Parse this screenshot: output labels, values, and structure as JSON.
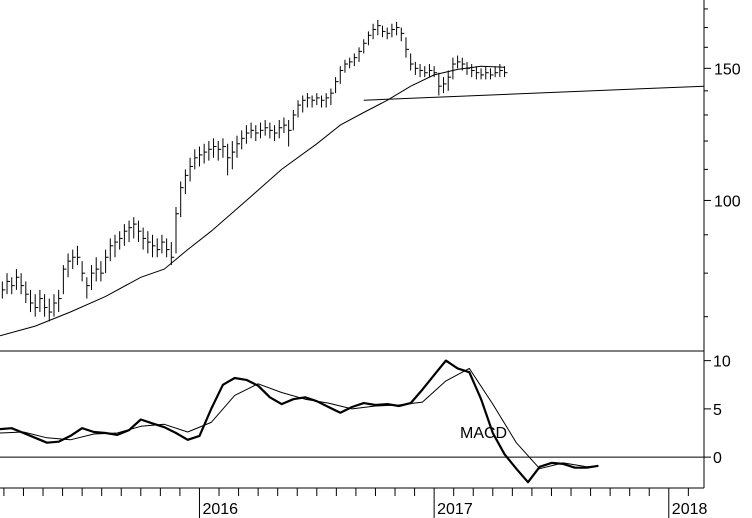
{
  "chart_data": [
    {
      "type": "line",
      "panel": "price",
      "scale": "log",
      "price_ticks": [
        100,
        150
      ],
      "price_tick_labels": [
        "100",
        "150"
      ],
      "xlim": [
        2015.15,
        2018.15
      ],
      "ylim": [
        63,
        185
      ],
      "year_ticks": [
        2016,
        2017,
        2018
      ],
      "year_labels": [
        "2016",
        "2017",
        "2018"
      ],
      "ohlc": [
        [
          2015.16,
          78,
          74,
          76
        ],
        [
          2015.18,
          80,
          75,
          78
        ],
        [
          2015.2,
          79,
          75,
          77
        ],
        [
          2015.22,
          81,
          76,
          79
        ],
        [
          2015.24,
          80,
          75,
          77
        ],
        [
          2015.26,
          78,
          73,
          75
        ],
        [
          2015.28,
          76,
          71,
          73
        ],
        [
          2015.3,
          75,
          70,
          72
        ],
        [
          2015.32,
          76,
          71,
          74
        ],
        [
          2015.34,
          75,
          70,
          72
        ],
        [
          2015.36,
          74,
          69,
          71
        ],
        [
          2015.38,
          75,
          70,
          73
        ],
        [
          2015.4,
          76,
          71,
          74
        ],
        [
          2015.42,
          82,
          75,
          81
        ],
        [
          2015.44,
          85,
          79,
          83
        ],
        [
          2015.46,
          86,
          81,
          84
        ],
        [
          2015.48,
          87,
          82,
          84
        ],
        [
          2015.5,
          83,
          78,
          80
        ],
        [
          2015.52,
          79,
          74,
          77
        ],
        [
          2015.54,
          82,
          76,
          80
        ],
        [
          2015.56,
          84,
          78,
          81
        ],
        [
          2015.58,
          83,
          78,
          80
        ],
        [
          2015.6,
          86,
          80,
          84
        ],
        [
          2015.62,
          89,
          83,
          87
        ],
        [
          2015.64,
          90,
          84,
          88
        ],
        [
          2015.66,
          91,
          86,
          89
        ],
        [
          2015.68,
          93,
          87,
          91
        ],
        [
          2015.7,
          94,
          88,
          92
        ],
        [
          2015.72,
          95,
          89,
          93
        ],
        [
          2015.74,
          94,
          88,
          91
        ],
        [
          2015.76,
          92,
          86,
          89
        ],
        [
          2015.78,
          91,
          85,
          88
        ],
        [
          2015.8,
          90,
          84,
          87
        ],
        [
          2015.82,
          89,
          84,
          86
        ],
        [
          2015.84,
          90,
          85,
          88
        ],
        [
          2015.86,
          89,
          84,
          86
        ],
        [
          2015.88,
          88,
          82,
          84
        ],
        [
          2015.9,
          98,
          85,
          96
        ],
        [
          2015.92,
          106,
          95,
          104
        ],
        [
          2015.94,
          110,
          102,
          108
        ],
        [
          2015.96,
          114,
          106,
          111
        ],
        [
          2015.98,
          117,
          110,
          114
        ],
        [
          2016.0,
          118,
          111,
          115
        ],
        [
          2016.02,
          119,
          112,
          116
        ],
        [
          2016.04,
          120,
          113,
          117
        ],
        [
          2016.06,
          121,
          114,
          118
        ],
        [
          2016.08,
          120,
          113,
          117
        ],
        [
          2016.1,
          121,
          114,
          118
        ],
        [
          2016.12,
          119,
          108,
          114
        ],
        [
          2016.14,
          120,
          110,
          116
        ],
        [
          2016.16,
          122,
          114,
          119
        ],
        [
          2016.18,
          124,
          117,
          121
        ],
        [
          2016.2,
          126,
          119,
          123
        ],
        [
          2016.22,
          127,
          121,
          124
        ],
        [
          2016.24,
          126,
          120,
          123
        ],
        [
          2016.26,
          127,
          121,
          124
        ],
        [
          2016.28,
          128,
          122,
          125
        ],
        [
          2016.3,
          127,
          121,
          124
        ],
        [
          2016.32,
          126,
          120,
          123
        ],
        [
          2016.34,
          128,
          121,
          125
        ],
        [
          2016.36,
          129,
          123,
          126
        ],
        [
          2016.38,
          128,
          118,
          124
        ],
        [
          2016.4,
          132,
          124,
          130
        ],
        [
          2016.42,
          136,
          129,
          134
        ],
        [
          2016.44,
          138,
          131,
          136
        ],
        [
          2016.46,
          139,
          133,
          137
        ],
        [
          2016.48,
          138,
          133,
          136
        ],
        [
          2016.5,
          139,
          134,
          137
        ],
        [
          2016.52,
          138,
          133,
          136
        ],
        [
          2016.54,
          139,
          133,
          137
        ],
        [
          2016.56,
          141,
          134,
          139
        ],
        [
          2016.58,
          146,
          139,
          144
        ],
        [
          2016.6,
          151,
          143,
          149
        ],
        [
          2016.62,
          154,
          148,
          152
        ],
        [
          2016.64,
          155,
          150,
          153
        ],
        [
          2016.66,
          157,
          151,
          155
        ],
        [
          2016.68,
          160,
          153,
          158
        ],
        [
          2016.7,
          164,
          157,
          162
        ],
        [
          2016.72,
          168,
          161,
          166
        ],
        [
          2016.74,
          172,
          164,
          169
        ],
        [
          2016.76,
          174,
          166,
          171
        ],
        [
          2016.78,
          171,
          165,
          168
        ],
        [
          2016.8,
          170,
          164,
          167
        ],
        [
          2016.82,
          172,
          165,
          169
        ],
        [
          2016.84,
          173,
          166,
          170
        ],
        [
          2016.86,
          170,
          163,
          167
        ],
        [
          2016.88,
          165,
          155,
          159
        ],
        [
          2016.9,
          157,
          149,
          152
        ],
        [
          2016.92,
          153,
          147,
          150
        ],
        [
          2016.94,
          152,
          146,
          149
        ],
        [
          2016.96,
          151,
          146,
          148
        ],
        [
          2016.98,
          152,
          146,
          149
        ],
        [
          2017.0,
          151,
          146,
          148
        ],
        [
          2017.02,
          148,
          138,
          142
        ],
        [
          2017.04,
          146,
          139,
          143
        ],
        [
          2017.06,
          149,
          140,
          146
        ],
        [
          2017.08,
          155,
          145,
          152
        ],
        [
          2017.1,
          156,
          150,
          153
        ],
        [
          2017.12,
          155,
          149,
          152
        ],
        [
          2017.14,
          153,
          147,
          150
        ],
        [
          2017.16,
          152,
          146,
          149
        ],
        [
          2017.18,
          151,
          145,
          148
        ],
        [
          2017.2,
          150,
          145,
          147
        ],
        [
          2017.22,
          151,
          145,
          148
        ],
        [
          2017.24,
          150,
          145,
          147
        ],
        [
          2017.26,
          151,
          146,
          148
        ],
        [
          2017.28,
          152,
          146,
          149
        ],
        [
          2017.3,
          151,
          146,
          148
        ]
      ],
      "trendline": [
        [
          2016.7,
          136.0
        ],
        [
          2018.15,
          142.0
        ]
      ],
      "moving_average": [
        [
          2015.15,
          66.0
        ],
        [
          2015.3,
          68.0
        ],
        [
          2015.45,
          71.0
        ],
        [
          2015.6,
          74.5
        ],
        [
          2015.75,
          79.0
        ],
        [
          2015.85,
          81.0
        ],
        [
          2015.95,
          86.0
        ],
        [
          2016.05,
          91.0
        ],
        [
          2016.2,
          100.0
        ],
        [
          2016.35,
          110.0
        ],
        [
          2016.5,
          119.0
        ],
        [
          2016.6,
          126.0
        ],
        [
          2016.7,
          131.0
        ],
        [
          2016.8,
          136.0
        ],
        [
          2016.9,
          142.0
        ],
        [
          2017.0,
          147.0
        ],
        [
          2017.1,
          149.5
        ],
        [
          2017.2,
          151.0
        ],
        [
          2017.3,
          150.5
        ]
      ]
    },
    {
      "type": "line",
      "panel": "macd",
      "label": "MACD",
      "ylim": [
        -3.2,
        11
      ],
      "y_ticks": [
        0,
        5,
        10
      ],
      "y_tick_labels": [
        "0",
        "5",
        "10"
      ],
      "series": [
        {
          "role": "macd",
          "points": [
            [
              2015.15,
              2.9
            ],
            [
              2015.2,
              3.0
            ],
            [
              2015.25,
              2.5
            ],
            [
              2015.3,
              2.0
            ],
            [
              2015.35,
              1.5
            ],
            [
              2015.4,
              1.6
            ],
            [
              2015.45,
              2.2
            ],
            [
              2015.5,
              3.0
            ],
            [
              2015.55,
              2.6
            ],
            [
              2015.6,
              2.5
            ],
            [
              2015.65,
              2.3
            ],
            [
              2015.7,
              2.8
            ],
            [
              2015.75,
              3.9
            ],
            [
              2015.8,
              3.5
            ],
            [
              2015.85,
              3.1
            ],
            [
              2015.9,
              2.5
            ],
            [
              2015.95,
              1.8
            ],
            [
              2016.0,
              2.2
            ],
            [
              2016.05,
              5.0
            ],
            [
              2016.1,
              7.5
            ],
            [
              2016.15,
              8.2
            ],
            [
              2016.2,
              8.0
            ],
            [
              2016.25,
              7.4
            ],
            [
              2016.3,
              6.2
            ],
            [
              2016.35,
              5.5
            ],
            [
              2016.4,
              6.0
            ],
            [
              2016.45,
              6.2
            ],
            [
              2016.5,
              5.8
            ],
            [
              2016.55,
              5.2
            ],
            [
              2016.6,
              4.6
            ],
            [
              2016.65,
              5.2
            ],
            [
              2016.7,
              5.6
            ],
            [
              2016.75,
              5.4
            ],
            [
              2016.8,
              5.5
            ],
            [
              2016.85,
              5.3
            ],
            [
              2016.9,
              5.6
            ],
            [
              2016.95,
              7.0
            ],
            [
              2017.0,
              8.5
            ],
            [
              2017.05,
              10.0
            ],
            [
              2017.1,
              9.2
            ],
            [
              2017.15,
              8.8
            ],
            [
              2017.2,
              6.0
            ],
            [
              2017.25,
              2.5
            ],
            [
              2017.3,
              0.3
            ],
            [
              2017.35,
              -1.2
            ],
            [
              2017.4,
              -2.6
            ],
            [
              2017.45,
              -1.0
            ],
            [
              2017.5,
              -0.6
            ],
            [
              2017.55,
              -0.7
            ],
            [
              2017.6,
              -1.1
            ],
            [
              2017.65,
              -1.1
            ],
            [
              2017.7,
              -0.9
            ]
          ]
        },
        {
          "role": "signal",
          "points": [
            [
              2015.15,
              2.5
            ],
            [
              2015.25,
              2.6
            ],
            [
              2015.35,
              2.0
            ],
            [
              2015.45,
              1.8
            ],
            [
              2015.55,
              2.4
            ],
            [
              2015.65,
              2.5
            ],
            [
              2015.75,
              3.2
            ],
            [
              2015.85,
              3.4
            ],
            [
              2015.95,
              2.6
            ],
            [
              2016.05,
              3.6
            ],
            [
              2016.15,
              6.4
            ],
            [
              2016.25,
              7.6
            ],
            [
              2016.35,
              6.7
            ],
            [
              2016.45,
              6.0
            ],
            [
              2016.55,
              5.6
            ],
            [
              2016.65,
              5.0
            ],
            [
              2016.75,
              5.3
            ],
            [
              2016.85,
              5.4
            ],
            [
              2016.95,
              5.7
            ],
            [
              2017.05,
              7.9
            ],
            [
              2017.15,
              9.2
            ],
            [
              2017.25,
              5.5
            ],
            [
              2017.35,
              1.5
            ],
            [
              2017.45,
              -1.2
            ],
            [
              2017.55,
              -0.6
            ],
            [
              2017.65,
              -1.0
            ],
            [
              2017.7,
              -0.9
            ]
          ]
        }
      ]
    }
  ]
}
